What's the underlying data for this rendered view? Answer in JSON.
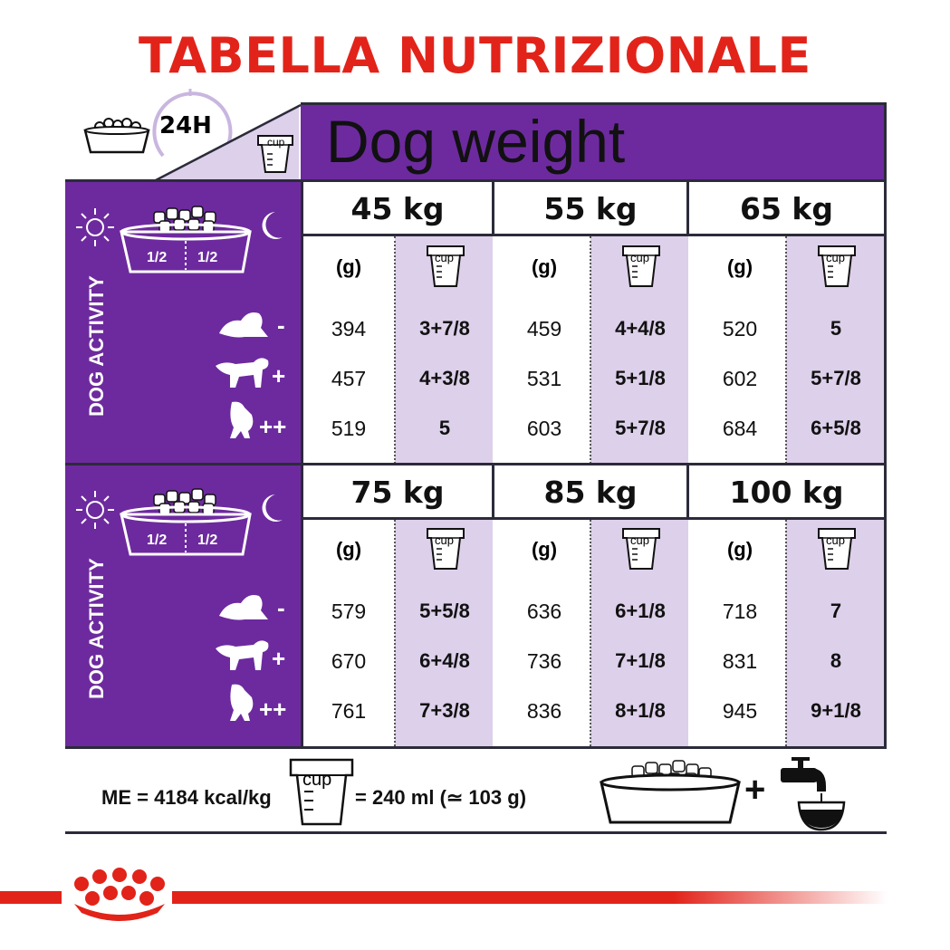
{
  "title": "TABELLA NUTRIZIONALE",
  "header": {
    "hours": "24H",
    "cup_word": "cup",
    "dog_weight": "Dog weight"
  },
  "side": {
    "activity_label": "DOG ACTIVITY",
    "half": "1/2",
    "activity_levels": [
      "-",
      "+",
      "++"
    ]
  },
  "columns_header": {
    "grams": "(g)",
    "cup": "cup"
  },
  "blocks": [
    {
      "weights": [
        {
          "kg": "45 kg",
          "rows": [
            [
              "394",
              "3+7/8"
            ],
            [
              "457",
              "4+3/8"
            ],
            [
              "519",
              "5"
            ]
          ]
        },
        {
          "kg": "55 kg",
          "rows": [
            [
              "459",
              "4+4/8"
            ],
            [
              "531",
              "5+1/8"
            ],
            [
              "603",
              "5+7/8"
            ]
          ]
        },
        {
          "kg": "65 kg",
          "rows": [
            [
              "520",
              "5"
            ],
            [
              "602",
              "5+7/8"
            ],
            [
              "684",
              "6+5/8"
            ]
          ]
        }
      ]
    },
    {
      "weights": [
        {
          "kg": "75 kg",
          "rows": [
            [
              "579",
              "5+5/8"
            ],
            [
              "670",
              "6+4/8"
            ],
            [
              "761",
              "7+3/8"
            ]
          ]
        },
        {
          "kg": "85 kg",
          "rows": [
            [
              "636",
              "6+1/8"
            ],
            [
              "736",
              "7+1/8"
            ],
            [
              "836",
              "8+1/8"
            ]
          ]
        },
        {
          "kg": "100 kg",
          "rows": [
            [
              "718",
              "7"
            ],
            [
              "831",
              "8"
            ],
            [
              "945",
              "9+1/8"
            ]
          ]
        }
      ]
    }
  ],
  "footer": {
    "energy": "ME = 4184 kcal/kg",
    "cup_word": "cup",
    "cup_equivalence": "= 240 ml (≃ 103 g)",
    "plus": "+"
  },
  "colors": {
    "brand_red": "#e2231a",
    "purple": "#6d2a9e",
    "lilac": "#ddd0ea"
  },
  "icons": [
    "food-bowl-icon",
    "clock-icon",
    "cup-icon",
    "sun-icon",
    "moon-icon",
    "dog-resting-icon",
    "dog-walking-icon",
    "dog-running-icon",
    "water-tap-icon",
    "royal-canin-crown-icon"
  ]
}
